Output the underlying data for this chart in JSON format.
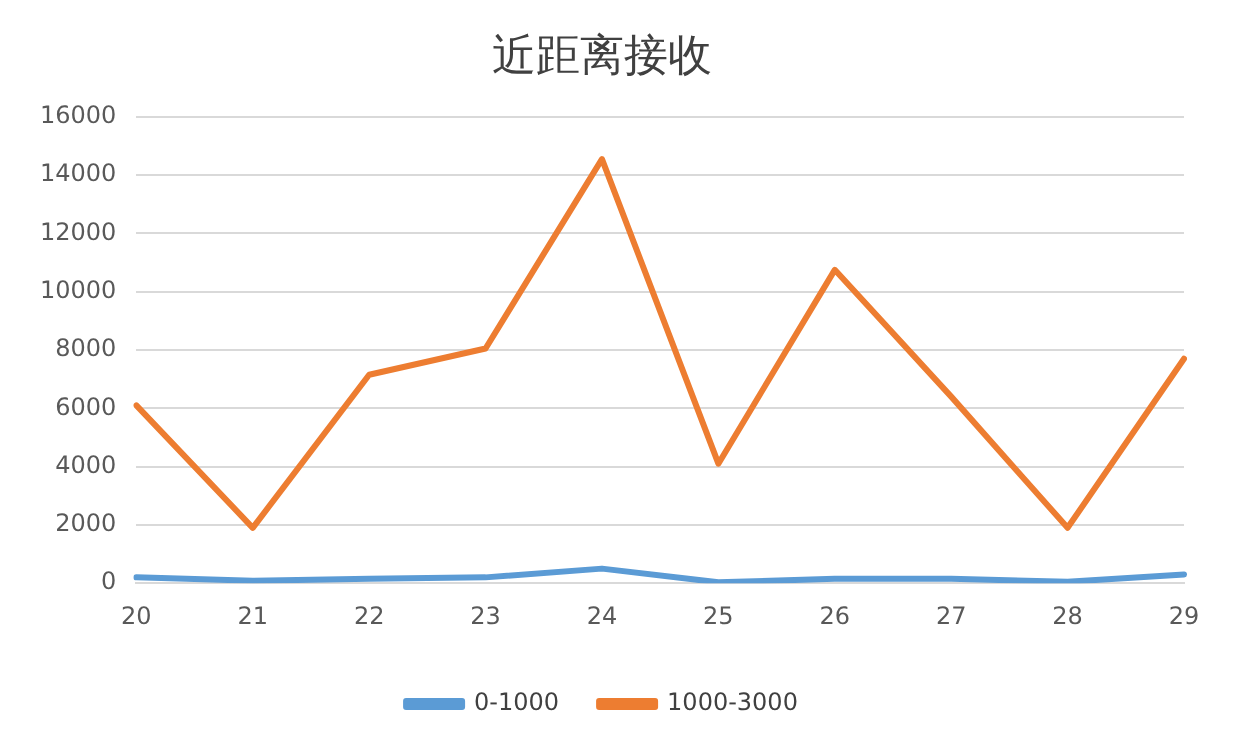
{
  "chart_data": {
    "type": "line",
    "title": "近距离接收",
    "categories": [
      "20",
      "21",
      "22",
      "23",
      "24",
      "25",
      "26",
      "27",
      "28",
      "29"
    ],
    "series": [
      {
        "name": "0-1000",
        "color": "#5b9bd5",
        "values": [
          200,
          80,
          150,
          200,
          500,
          30,
          150,
          150,
          50,
          300
        ]
      },
      {
        "name": "1000-3000",
        "color": "#ed7d31",
        "values": [
          6100,
          1900,
          7150,
          8050,
          14550,
          4100,
          10750,
          6400,
          1900,
          7700
        ]
      }
    ],
    "ylim": [
      0,
      16000
    ],
    "yticks": [
      0,
      2000,
      4000,
      6000,
      8000,
      10000,
      12000,
      14000,
      16000
    ],
    "grid": "y",
    "legend": "bottom",
    "marker": "none",
    "line_style": "solid"
  }
}
